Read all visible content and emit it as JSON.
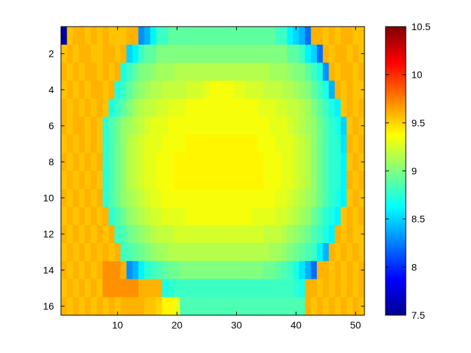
{
  "chart_data": {
    "type": "heatmap",
    "title": "",
    "xlabel": "",
    "ylabel": "",
    "rows": 16,
    "cols": 51,
    "xlim": [
      0.5,
      51.5
    ],
    "ylim": [
      0.5,
      16.5
    ],
    "x_ticks": [
      10,
      20,
      30,
      40,
      50
    ],
    "y_ticks": [
      2,
      4,
      6,
      8,
      10,
      12,
      14,
      16
    ],
    "colormap": "jet",
    "clim": [
      7.5,
      10.5
    ],
    "colorbar": {
      "placement": "right",
      "ticks": [
        "7.5",
        "8",
        "8.5",
        "9",
        "9.5",
        "10",
        "10.5"
      ]
    },
    "grid": false,
    "values": [
      [
        7.6,
        9.55,
        9.6,
        9.6,
        9.55,
        9.6,
        9.55,
        9.6,
        9.55,
        9.55,
        9.55,
        9.6,
        9.6,
        8.3,
        8.4,
        8.6,
        8.8,
        8.8,
        8.9,
        8.9,
        8.9,
        8.9,
        8.9,
        8.9,
        8.9,
        8.9,
        8.9,
        8.9,
        8.9,
        8.9,
        8.9,
        8.9,
        8.9,
        8.9,
        8.9,
        8.9,
        8.8,
        8.8,
        8.6,
        8.5,
        8.4,
        8.2,
        9.6,
        9.6,
        9.55,
        9.6,
        9.55,
        9.6,
        9.6,
        9.55,
        9.55
      ],
      [
        9.55,
        9.6,
        9.55,
        9.6,
        9.6,
        9.55,
        9.55,
        9.6,
        9.6,
        9.55,
        9.6,
        8.5,
        8.6,
        8.8,
        8.9,
        8.9,
        9.0,
        9.0,
        9.0,
        9.0,
        9.0,
        9.0,
        9.0,
        9.0,
        9.0,
        9.0,
        9.0,
        9.0,
        9.0,
        9.0,
        9.0,
        9.0,
        9.0,
        9.0,
        9.0,
        9.0,
        9.0,
        9.0,
        8.9,
        8.9,
        8.8,
        8.6,
        8.5,
        8.2,
        9.6,
        9.55,
        9.6,
        9.6,
        9.55,
        9.6,
        9.55
      ],
      [
        9.6,
        9.55,
        9.6,
        9.55,
        9.6,
        9.6,
        9.55,
        9.6,
        9.55,
        9.6,
        8.7,
        8.8,
        8.9,
        9.0,
        9.0,
        9.05,
        9.1,
        9.1,
        9.1,
        9.15,
        9.15,
        9.15,
        9.15,
        9.15,
        9.15,
        9.15,
        9.15,
        9.15,
        9.15,
        9.15,
        9.15,
        9.15,
        9.15,
        9.15,
        9.15,
        9.1,
        9.1,
        9.1,
        9.05,
        9.0,
        9.0,
        8.9,
        8.8,
        8.7,
        8.3,
        9.6,
        9.55,
        9.6,
        9.6,
        9.55,
        9.6
      ],
      [
        9.55,
        9.6,
        9.55,
        9.6,
        9.55,
        9.6,
        9.6,
        9.55,
        9.6,
        8.7,
        8.8,
        8.9,
        9.0,
        9.05,
        9.1,
        9.15,
        9.15,
        9.2,
        9.2,
        9.2,
        9.2,
        9.25,
        9.25,
        9.25,
        9.3,
        9.35,
        9.35,
        9.35,
        9.35,
        9.3,
        9.3,
        9.25,
        9.25,
        9.25,
        9.2,
        9.2,
        9.2,
        9.15,
        9.15,
        9.1,
        9.05,
        9.0,
        8.9,
        8.8,
        8.7,
        8.4,
        9.6,
        9.55,
        9.6,
        9.55,
        9.55
      ],
      [
        9.6,
        9.55,
        9.6,
        9.55,
        9.6,
        9.55,
        9.6,
        9.55,
        8.7,
        8.8,
        8.9,
        9.0,
        9.1,
        9.15,
        9.2,
        9.2,
        9.25,
        9.25,
        9.3,
        9.3,
        9.3,
        9.35,
        9.35,
        9.35,
        9.35,
        9.35,
        9.35,
        9.35,
        9.35,
        9.35,
        9.35,
        9.35,
        9.35,
        9.3,
        9.3,
        9.3,
        9.25,
        9.25,
        9.2,
        9.2,
        9.15,
        9.1,
        9.0,
        8.9,
        8.8,
        8.7,
        8.6,
        9.55,
        9.6,
        9.55,
        9.6
      ],
      [
        9.6,
        9.55,
        9.6,
        9.6,
        9.55,
        9.6,
        9.55,
        8.75,
        8.85,
        8.95,
        9.05,
        9.1,
        9.15,
        9.2,
        9.25,
        9.3,
        9.3,
        9.3,
        9.35,
        9.35,
        9.35,
        9.35,
        9.35,
        9.35,
        9.35,
        9.35,
        9.35,
        9.35,
        9.35,
        9.35,
        9.35,
        9.35,
        9.35,
        9.35,
        9.35,
        9.3,
        9.3,
        9.3,
        9.25,
        9.2,
        9.15,
        9.1,
        9.05,
        8.95,
        8.85,
        8.75,
        8.7,
        8.5,
        9.55,
        9.6,
        9.55
      ],
      [
        9.55,
        9.6,
        9.55,
        9.6,
        9.55,
        9.6,
        9.55,
        8.75,
        8.85,
        8.95,
        9.05,
        9.15,
        9.2,
        9.25,
        9.3,
        9.3,
        9.3,
        9.35,
        9.35,
        9.35,
        9.35,
        9.4,
        9.4,
        9.4,
        9.4,
        9.4,
        9.4,
        9.4,
        9.4,
        9.4,
        9.4,
        9.4,
        9.4,
        9.35,
        9.35,
        9.35,
        9.3,
        9.3,
        9.3,
        9.25,
        9.2,
        9.15,
        9.05,
        8.95,
        8.85,
        8.75,
        8.75,
        8.55,
        9.6,
        9.55,
        9.6
      ],
      [
        9.6,
        9.55,
        9.6,
        9.55,
        9.6,
        9.55,
        9.6,
        8.75,
        8.85,
        8.95,
        9.05,
        9.15,
        9.2,
        9.25,
        9.3,
        9.3,
        9.35,
        9.35,
        9.35,
        9.4,
        9.4,
        9.4,
        9.4,
        9.4,
        9.4,
        9.4,
        9.4,
        9.4,
        9.4,
        9.4,
        9.4,
        9.4,
        9.4,
        9.4,
        9.35,
        9.35,
        9.35,
        9.3,
        9.3,
        9.25,
        9.2,
        9.15,
        9.05,
        8.95,
        8.85,
        8.75,
        8.75,
        8.6,
        9.55,
        9.6,
        9.55
      ],
      [
        9.55,
        9.6,
        9.55,
        9.6,
        9.55,
        9.6,
        9.55,
        8.75,
        8.85,
        8.95,
        9.05,
        9.15,
        9.2,
        9.25,
        9.3,
        9.3,
        9.35,
        9.35,
        9.35,
        9.4,
        9.4,
        9.4,
        9.4,
        9.4,
        9.4,
        9.4,
        9.4,
        9.4,
        9.4,
        9.4,
        9.4,
        9.4,
        9.4,
        9.4,
        9.35,
        9.35,
        9.35,
        9.3,
        9.3,
        9.25,
        9.2,
        9.15,
        9.05,
        8.95,
        8.85,
        8.75,
        8.75,
        8.6,
        9.6,
        9.55,
        9.6
      ],
      [
        9.6,
        9.55,
        9.6,
        9.55,
        9.6,
        9.55,
        9.6,
        8.75,
        8.85,
        8.95,
        9.05,
        9.1,
        9.15,
        9.2,
        9.25,
        9.3,
        9.3,
        9.35,
        9.35,
        9.35,
        9.35,
        9.35,
        9.35,
        9.35,
        9.35,
        9.35,
        9.35,
        9.35,
        9.35,
        9.35,
        9.35,
        9.35,
        9.35,
        9.35,
        9.35,
        9.35,
        9.3,
        9.3,
        9.25,
        9.2,
        9.15,
        9.1,
        9.05,
        8.95,
        8.85,
        8.75,
        8.7,
        8.6,
        9.55,
        9.6,
        9.55
      ],
      [
        9.55,
        9.6,
        9.55,
        9.6,
        9.55,
        9.6,
        9.55,
        9.6,
        8.75,
        8.85,
        8.95,
        9.05,
        9.1,
        9.15,
        9.2,
        9.25,
        9.25,
        9.3,
        9.3,
        9.3,
        9.3,
        9.35,
        9.35,
        9.35,
        9.35,
        9.35,
        9.35,
        9.35,
        9.35,
        9.35,
        9.35,
        9.35,
        9.3,
        9.3,
        9.3,
        9.3,
        9.25,
        9.25,
        9.2,
        9.15,
        9.1,
        9.05,
        8.95,
        8.85,
        8.75,
        8.7,
        8.6,
        9.55,
        9.6,
        9.55,
        9.6
      ],
      [
        9.6,
        9.55,
        9.6,
        9.55,
        9.6,
        9.55,
        9.6,
        9.55,
        9.6,
        8.8,
        8.85,
        8.95,
        9.0,
        9.05,
        9.1,
        9.15,
        9.2,
        9.2,
        9.2,
        9.25,
        9.25,
        9.25,
        9.25,
        9.25,
        9.25,
        9.25,
        9.25,
        9.25,
        9.25,
        9.25,
        9.25,
        9.25,
        9.25,
        9.25,
        9.2,
        9.2,
        9.2,
        9.15,
        9.1,
        9.05,
        9.0,
        8.95,
        8.85,
        8.8,
        8.7,
        8.6,
        9.6,
        9.55,
        9.6,
        9.55,
        9.55
      ],
      [
        9.55,
        9.6,
        9.55,
        9.6,
        9.55,
        9.6,
        9.55,
        9.6,
        9.55,
        9.6,
        8.8,
        8.85,
        8.9,
        8.95,
        9.0,
        9.05,
        9.1,
        9.1,
        9.15,
        9.15,
        9.15,
        9.15,
        9.15,
        9.15,
        9.15,
        9.15,
        9.15,
        9.15,
        9.15,
        9.15,
        9.15,
        9.15,
        9.15,
        9.15,
        9.15,
        9.1,
        9.1,
        9.05,
        9.0,
        8.95,
        8.9,
        8.85,
        8.8,
        8.6,
        8.4,
        9.6,
        9.55,
        9.6,
        9.55,
        9.6,
        9.55
      ],
      [
        9.6,
        9.55,
        9.6,
        9.55,
        9.6,
        9.55,
        9.6,
        9.7,
        9.7,
        9.7,
        9.6,
        8.3,
        8.4,
        8.6,
        8.75,
        8.8,
        8.85,
        8.9,
        8.95,
        8.95,
        9.0,
        9.0,
        9.0,
        9.0,
        9.0,
        9.0,
        9.0,
        9.0,
        9.0,
        9.0,
        9.0,
        9.0,
        9.0,
        9.0,
        8.95,
        8.95,
        8.9,
        8.85,
        8.8,
        8.7,
        8.55,
        8.4,
        8.2,
        9.6,
        9.6,
        9.55,
        9.6,
        9.55,
        9.6,
        9.55,
        9.6
      ],
      [
        9.55,
        9.6,
        9.55,
        9.6,
        9.55,
        9.6,
        9.55,
        9.7,
        9.7,
        9.7,
        9.7,
        9.7,
        9.7,
        9.6,
        9.6,
        9.6,
        9.6,
        8.7,
        8.75,
        8.8,
        8.8,
        8.8,
        8.8,
        8.8,
        8.8,
        8.8,
        8.8,
        8.8,
        8.8,
        8.8,
        8.8,
        8.8,
        8.8,
        8.8,
        8.8,
        8.8,
        8.8,
        8.8,
        8.8,
        8.75,
        8.7,
        9.6,
        9.6,
        9.55,
        9.6,
        9.55,
        9.6,
        9.55,
        9.6,
        9.55,
        9.6
      ],
      [
        9.6,
        9.55,
        9.6,
        9.55,
        9.6,
        9.55,
        9.6,
        9.55,
        9.6,
        9.55,
        9.6,
        9.6,
        9.6,
        9.6,
        9.55,
        9.55,
        9.5,
        9.4,
        9.4,
        9.3,
        8.85,
        8.85,
        8.85,
        8.85,
        8.85,
        8.85,
        8.85,
        8.85,
        8.85,
        8.85,
        8.85,
        8.85,
        8.85,
        8.85,
        8.85,
        8.85,
        8.85,
        8.85,
        8.85,
        8.85,
        8.85,
        9.6,
        9.55,
        9.6,
        9.55,
        9.6,
        9.55,
        9.6,
        9.55,
        9.6,
        9.55
      ]
    ]
  }
}
